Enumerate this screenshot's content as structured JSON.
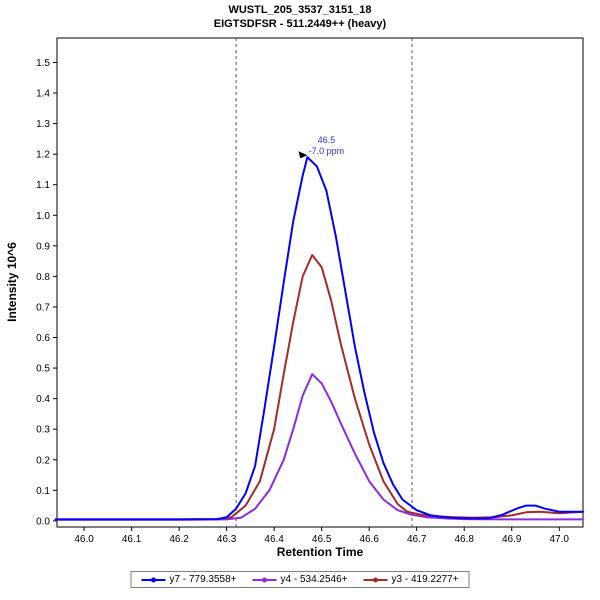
{
  "chart_data": {
    "type": "line",
    "title": "WUSTL_205_3537_3151_18",
    "subtitle": "EIGTSDFSR - 511.2449++ (heavy)",
    "xlabel": "Retention Time",
    "ylabel": "Intensity 10^6",
    "xlim": [
      45.943,
      47.05
    ],
    "ylim": [
      -0.02,
      1.58
    ],
    "x_ticks": [
      46.0,
      46.1,
      46.2,
      46.3,
      46.4,
      46.5,
      46.6,
      46.7,
      46.8,
      46.9,
      47.0
    ],
    "y_ticks": [
      0.0,
      0.1,
      0.2,
      0.3,
      0.4,
      0.5,
      0.6,
      0.7,
      0.8,
      0.9,
      1.0,
      1.1,
      1.2,
      1.3,
      1.4,
      1.5
    ],
    "grid": false,
    "legend_position": "bottom",
    "integration_boundaries": [
      46.32,
      46.69
    ],
    "boundary_color": "#555555",
    "annotation": {
      "label": "46.5",
      "sublabel": "-7.0 ppm",
      "x": 46.47,
      "y": 1.19,
      "color": "#3333cc"
    },
    "series": [
      {
        "id": "y7",
        "name": "y7 - 779.3558+",
        "color": "#0000FF",
        "x": [
          45.94,
          46.0,
          46.1,
          46.2,
          46.28,
          46.3,
          46.32,
          46.34,
          46.36,
          46.38,
          46.4,
          46.42,
          46.44,
          46.46,
          46.47,
          46.49,
          46.51,
          46.53,
          46.55,
          46.57,
          46.59,
          46.61,
          46.63,
          46.65,
          46.67,
          46.7,
          46.73,
          46.77,
          46.81,
          46.85,
          46.88,
          46.91,
          46.93,
          46.95,
          46.97,
          47.0,
          47.05
        ],
        "y": [
          0.005,
          0.005,
          0.005,
          0.005,
          0.006,
          0.012,
          0.04,
          0.09,
          0.18,
          0.37,
          0.57,
          0.78,
          0.98,
          1.13,
          1.19,
          1.16,
          1.08,
          0.93,
          0.75,
          0.57,
          0.42,
          0.29,
          0.19,
          0.12,
          0.07,
          0.035,
          0.018,
          0.01,
          0.008,
          0.008,
          0.02,
          0.04,
          0.05,
          0.05,
          0.04,
          0.03,
          0.03
        ]
      },
      {
        "id": "y4",
        "name": "y4 - 534.2546+",
        "color": "#8A2BE2",
        "x": [
          45.94,
          46.0,
          46.1,
          46.2,
          46.3,
          46.33,
          46.36,
          46.39,
          46.42,
          46.44,
          46.46,
          46.48,
          46.5,
          46.52,
          46.54,
          46.57,
          46.6,
          46.63,
          46.66,
          46.69,
          46.72,
          46.76,
          46.8,
          46.9,
          47.0,
          47.05
        ],
        "y": [
          0.004,
          0.004,
          0.004,
          0.004,
          0.005,
          0.01,
          0.04,
          0.1,
          0.2,
          0.3,
          0.41,
          0.48,
          0.45,
          0.39,
          0.32,
          0.22,
          0.13,
          0.07,
          0.035,
          0.02,
          0.012,
          0.008,
          0.006,
          0.005,
          0.005,
          0.005
        ]
      },
      {
        "id": "y3",
        "name": "y3 - 419.2277+",
        "color": "#A52A2A",
        "x": [
          45.94,
          46.0,
          46.1,
          46.2,
          46.28,
          46.31,
          46.34,
          46.37,
          46.4,
          46.42,
          46.44,
          46.46,
          46.48,
          46.5,
          46.52,
          46.54,
          46.57,
          46.6,
          46.63,
          46.66,
          46.68,
          46.71,
          46.74,
          46.78,
          46.82,
          46.86,
          46.9,
          46.93,
          46.96,
          47.0,
          47.05
        ],
        "y": [
          0.005,
          0.005,
          0.005,
          0.005,
          0.006,
          0.012,
          0.05,
          0.13,
          0.3,
          0.48,
          0.65,
          0.8,
          0.87,
          0.83,
          0.72,
          0.58,
          0.4,
          0.25,
          0.13,
          0.055,
          0.03,
          0.02,
          0.015,
          0.012,
          0.01,
          0.012,
          0.018,
          0.028,
          0.03,
          0.025,
          0.03
        ]
      }
    ]
  }
}
